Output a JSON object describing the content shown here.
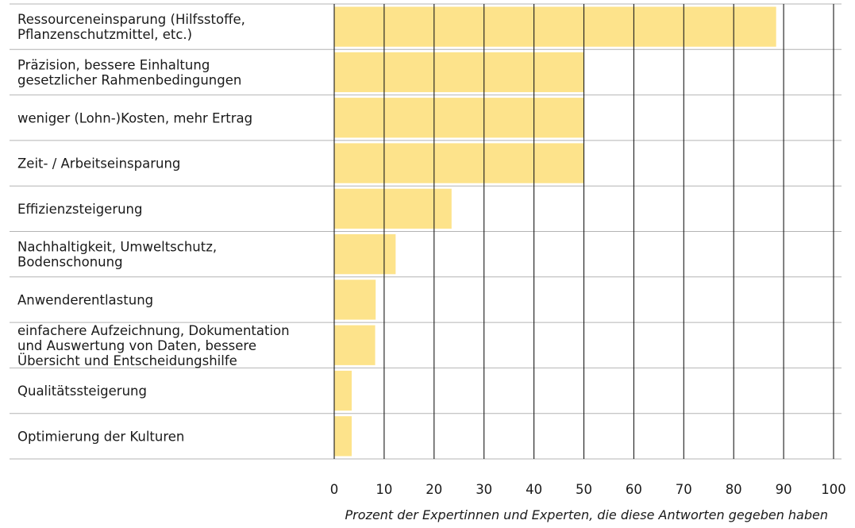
{
  "chart_data": {
    "type": "bar",
    "orientation": "horizontal",
    "categories": [
      [
        "Ressourceneinsparung (Hilfsstoffe,",
        "Pflanzenschutzmittel, etc.)"
      ],
      [
        "Präzision, bessere Einhaltung",
        "gesetzlicher Rahmenbedingungen"
      ],
      [
        "weniger (Lohn-)Kosten, mehr Ertrag"
      ],
      [
        "Zeit- / Arbeitseinsparung"
      ],
      [
        "Effizienzsteigerung"
      ],
      [
        "Nachhaltigkeit, Umweltschutz,",
        "Bodenschonung"
      ],
      [
        "Anwenderentlastung"
      ],
      [
        "einfachere Aufzeichnung, Dokumentation",
        "und Auswertung von Daten, bessere",
        "Übersicht und Entscheidungshilfe"
      ],
      [
        "Qualitätssteigerung"
      ],
      [
        "Optimierung der Kulturen"
      ]
    ],
    "values": [
      88.5,
      50,
      50,
      50,
      23.5,
      12.3,
      8.3,
      8.2,
      3.5,
      3.5
    ],
    "xlim": [
      0,
      100
    ],
    "xticks": [
      "0",
      "10",
      "20",
      "30",
      "40",
      "50",
      "60",
      "70",
      "80",
      "90",
      "100"
    ],
    "xlabel": "Prozent der Expertinnen und Experten, die diese Antworten gegeben haben",
    "grid": "vertical",
    "bar_color": "#fde38b",
    "grid_color": "#1a1a1a",
    "separator_color": "#b4b4b4"
  }
}
